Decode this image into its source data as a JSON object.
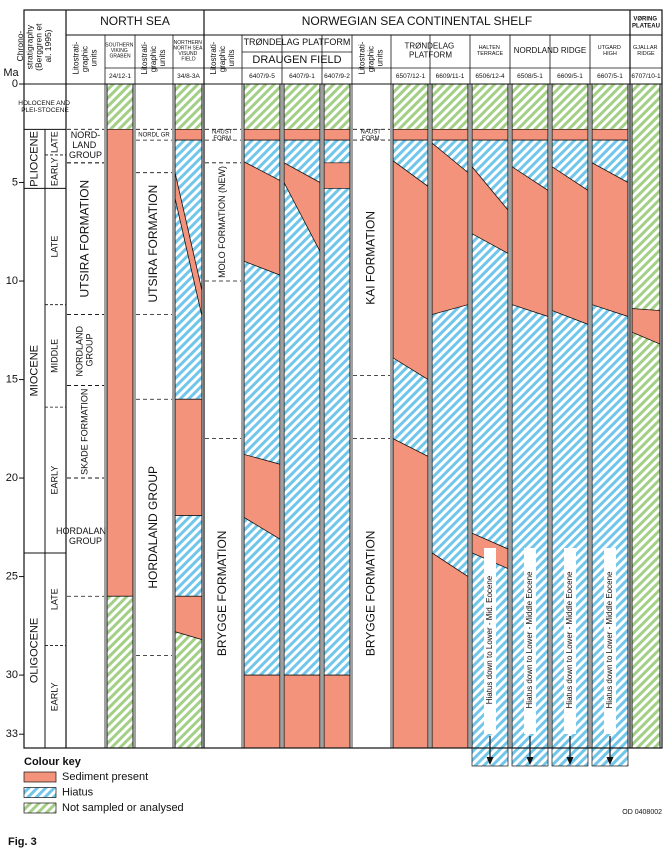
{
  "figure": {
    "label": "Fig. 3",
    "code": "OD 0408002"
  },
  "axis": {
    "label": "Ma",
    "ylim": [
      0,
      33.7
    ],
    "yticks": [
      0,
      5,
      10,
      15,
      20,
      25,
      30,
      33
    ]
  },
  "regions": [
    {
      "label": "NORTH SEA"
    },
    {
      "label": "NORWEGIAN SEA CONTINENTAL SHELF"
    },
    {
      "label": "VØRING PLATEAU"
    }
  ],
  "areas": [
    {
      "label": "SOUTHERN VIKING GRABEN"
    },
    {
      "label": "NORTHERN NORTH SEA VISUND FIELD"
    },
    {
      "label": "TRØNDELAG PLATFORM"
    },
    {
      "label": "DRAUGEN FIELD"
    },
    {
      "label": "TRØNDELAG PLATFORM"
    },
    {
      "label": "HALTEN TERRACE"
    },
    {
      "label": "NORDLAND RIDGE"
    },
    {
      "label": "UTGARD HIGH"
    },
    {
      "label": "GJALLAR RIDGE"
    }
  ],
  "chrono": {
    "header": "Chrono-stratigraphy (Berggren et al. 1995)",
    "epochs": [
      {
        "label": "HOLOCENE AND PLEI-STOCENE",
        "top": 0,
        "base": 2.3
      },
      {
        "label": "PLIOCENE",
        "top": 2.3,
        "base": 5.3,
        "stages": [
          {
            "label": "LATE",
            "top": 2.3,
            "base": 3.6
          },
          {
            "label": "EARLY",
            "top": 3.6,
            "base": 5.3
          }
        ]
      },
      {
        "label": "MIOCENE",
        "top": 5.3,
        "base": 23.8,
        "stages": [
          {
            "label": "LATE",
            "top": 5.3,
            "base": 11.2
          },
          {
            "label": "MIDDLE",
            "top": 11.2,
            "base": 16.4
          },
          {
            "label": "EARLY",
            "top": 16.4,
            "base": 23.8
          }
        ]
      },
      {
        "label": "OLIGOCENE",
        "top": 23.8,
        "base": 33.7,
        "stages": [
          {
            "label": "LATE",
            "top": 23.8,
            "base": 28.5
          },
          {
            "label": "EARLY",
            "top": 28.5,
            "base": 33.7
          }
        ]
      }
    ]
  },
  "litho_header": "Litostrati-graphic units",
  "columns": [
    {
      "kind": "litho",
      "units": [
        {
          "label": "NORD-LAND GROUP",
          "top": 2.3,
          "base": 4.0,
          "rotate": false
        },
        {
          "label": "UTSIRA FORMATION",
          "top": 4.0,
          "base": 11.7,
          "rotate": true
        },
        {
          "label": "NORDLAND GROUP",
          "top": 11.7,
          "base": 15.3,
          "rotate": true
        },
        {
          "label": "SKADE FORMATION",
          "top": 15.3,
          "base": 20.0,
          "rotate": true
        },
        {
          "label": "HORDALAND GROUP",
          "top": 20.0,
          "base": 26.0,
          "rotate": false
        }
      ]
    },
    {
      "kind": "well",
      "name": "24/12-1",
      "boundaries": [
        0,
        2.3,
        26.0,
        33.7
      ],
      "facies": [
        "not_sampled",
        "sediment",
        "not_sampled"
      ]
    },
    {
      "kind": "litho",
      "units": [
        {
          "label": "NORDL GR",
          "top": 2.3,
          "base": 2.85,
          "rotate": false
        },
        {
          "label": "UTSIRA FORMATION",
          "top": 4.5,
          "base": 11.7,
          "rotate": true
        },
        {
          "label": "HORDALAND GROUP",
          "top": 16.0,
          "base": 29.0,
          "rotate": true
        }
      ]
    },
    {
      "kind": "well",
      "name": "34/8-3A",
      "boundaries": [
        0,
        2.3,
        2.85,
        [
          4.5,
          10.5
        ],
        [
          5.8,
          11.8
        ],
        16.0,
        21.9,
        26.0,
        [
          27.8,
          28.2
        ],
        33.7
      ],
      "facies": [
        "not_sampled",
        "sediment",
        "hiatus",
        "sediment",
        "hiatus",
        "sediment",
        "hiatus",
        "sediment",
        "not_sampled"
      ]
    },
    {
      "kind": "litho",
      "units": [
        {
          "label": "NAUST FORM.",
          "top": 2.3,
          "base": 2.85,
          "rotate": false
        },
        {
          "label": "MOLO FORMATION (NEW)",
          "top": 4.0,
          "base": 10.0,
          "rotate": true
        },
        {
          "label": "BRYGGE FORMATION",
          "top": 18.0,
          "base": 33.7,
          "rotate": true
        }
      ]
    },
    {
      "kind": "well",
      "name": "6407/9-5",
      "boundaries": [
        0,
        2.3,
        2.85,
        [
          3.95,
          4.9
        ],
        [
          9.0,
          9.7
        ],
        [
          18.8,
          19.3
        ],
        [
          22.0,
          23.1
        ],
        30,
        33.7
      ],
      "facies": [
        "not_sampled",
        "sediment",
        "hiatus",
        "sediment",
        "hiatus",
        "sediment",
        "hiatus",
        "sediment"
      ]
    },
    {
      "kind": "well",
      "name": "6407/9-1",
      "boundaries": [
        0,
        2.3,
        2.85,
        [
          4.0,
          5.0
        ],
        [
          5.0,
          8.5
        ],
        30,
        33.7
      ],
      "facies": [
        "not_sampled",
        "sediment",
        "hiatus",
        "sediment",
        "hiatus",
        "sediment"
      ]
    },
    {
      "kind": "well",
      "name": "6407/9-2",
      "boundaries": [
        0,
        2.3,
        2.85,
        4.0,
        5.3,
        30,
        33.7
      ],
      "facies": [
        "not_sampled",
        "sediment",
        "hiatus",
        "sediment",
        "hiatus",
        "sediment"
      ]
    },
    {
      "kind": "litho",
      "units": [
        {
          "label": "NAUST FORM.",
          "top": 2.3,
          "base": 2.85,
          "rotate": false
        },
        {
          "label": "KAI FORMATION",
          "top": 2.85,
          "base": 14.8,
          "rotate": true
        },
        {
          "label": "BRYGGE FORMATION",
          "top": 18.0,
          "base": 33.7,
          "rotate": true
        }
      ]
    },
    {
      "kind": "well",
      "name": "6507/12-1",
      "boundaries": [
        0,
        2.3,
        2.85,
        [
          3.9,
          5.2
        ],
        [
          13.9,
          15.0
        ],
        [
          18.0,
          18.9
        ],
        33.7
      ],
      "facies": [
        "not_sampled",
        "sediment",
        "hiatus",
        "sediment",
        "hiatus",
        "sediment"
      ]
    },
    {
      "kind": "well",
      "name": "6609/11-1",
      "boundaries": [
        0,
        2.3,
        2.85,
        [
          3.0,
          4.5
        ],
        [
          11.7,
          11.2
        ],
        [
          23.8,
          25.0
        ],
        33.7
      ],
      "facies": [
        "not_sampled",
        "sediment",
        "hiatus",
        "sediment",
        "hiatus",
        "sediment"
      ]
    },
    {
      "kind": "well",
      "name": "6506/12-4",
      "boundaries": [
        0,
        2.3,
        2.85,
        [
          4.2,
          6.4
        ],
        [
          7.6,
          8.6
        ],
        [
          22.8,
          23.6
        ],
        [
          23.8,
          24.6
        ],
        33.7
      ],
      "facies": [
        "not_sampled",
        "sediment",
        "hiatus",
        "sediment",
        "hiatus",
        "sediment",
        "hiatus"
      ],
      "note": "Hiatus down to Lower - Mid. Eocene"
    },
    {
      "kind": "well",
      "name": "6508/5-1",
      "boundaries": [
        0,
        2.3,
        2.85,
        [
          4.2,
          5.4
        ],
        [
          11.2,
          11.8
        ],
        33.7
      ],
      "facies": [
        "not_sampled",
        "sediment",
        "hiatus",
        "sediment",
        "hiatus"
      ],
      "note": "Hiatus down to Lower - Middle Eocene"
    },
    {
      "kind": "well",
      "name": "6609/5-1",
      "boundaries": [
        0,
        2.3,
        2.85,
        [
          4.2,
          5.4
        ],
        [
          11.5,
          12.2
        ],
        33.7
      ],
      "facies": [
        "not_sampled",
        "sediment",
        "hiatus",
        "sediment",
        "hiatus"
      ],
      "note": "Hiatus down to Lower - Middle Eocene"
    },
    {
      "kind": "well",
      "name": "6607/5-1",
      "boundaries": [
        0,
        2.3,
        2.85,
        [
          4.0,
          5.0
        ],
        [
          11.2,
          11.8
        ],
        33.7
      ],
      "facies": [
        "not_sampled",
        "sediment",
        "hiatus",
        "sediment",
        "hiatus"
      ],
      "note": "Hiatus down to Lower - Middle Eocene"
    },
    {
      "kind": "well",
      "name": "6707/10-1",
      "boundaries": [
        0,
        [
          11.4,
          11.5
        ],
        [
          12.6,
          13.2
        ],
        33.7
      ],
      "facies": [
        "not_sampled",
        "sediment",
        "not_sampled"
      ]
    }
  ],
  "key": {
    "title": "Colour key",
    "items": [
      {
        "label": "Sediment present",
        "kind": "sediment"
      },
      {
        "label": "Hiatus",
        "kind": "hiatus"
      },
      {
        "label": "Not sampled or analysed",
        "kind": "not_sampled"
      }
    ]
  }
}
